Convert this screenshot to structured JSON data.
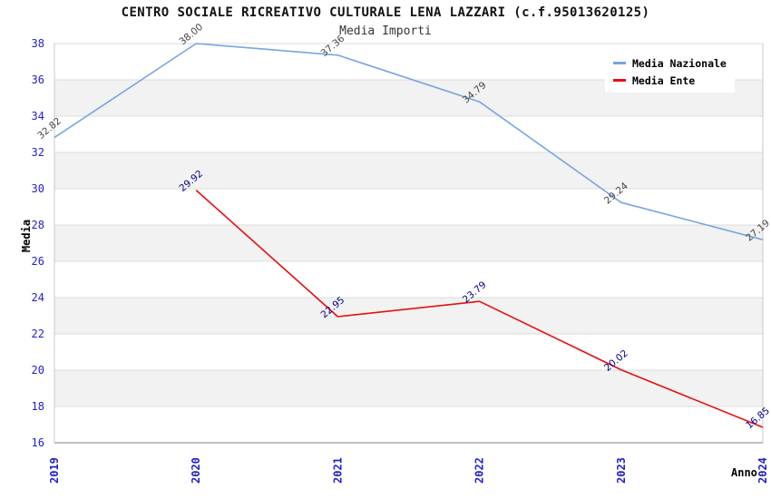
{
  "page": {
    "title": "CENTRO SOCIALE RICREATIVO CULTURALE LENA LAZZARI (c.f.95013620125)",
    "subtitle": "Media Importi"
  },
  "chart_data": {
    "type": "line",
    "title": "CENTRO SOCIALE RICREATIVO CULTURALE LENA LAZZARI (c.f.95013620125)",
    "subtitle": "Media Importi",
    "xlabel": "Anno",
    "ylabel": "Media",
    "categories": [
      "2019",
      "2020",
      "2021",
      "2022",
      "2023",
      "2024"
    ],
    "series": [
      {
        "name": "Media Nazionale",
        "color": "#76a5e3",
        "label_color": "#454545",
        "values": [
          32.82,
          38.0,
          37.36,
          34.79,
          29.24,
          27.19
        ]
      },
      {
        "name": "Media Ente",
        "color": "#e60f0f",
        "label_color": "#00008b",
        "values": [
          null,
          29.92,
          22.95,
          23.79,
          20.02,
          16.85
        ]
      }
    ],
    "ylim": [
      16,
      38
    ],
    "ytick_step": 2,
    "tick_label_color": "#1e1ecd",
    "band_color": "#f2f2f2",
    "grid_color": "#dcdcdc",
    "axis_line_color": "#999999",
    "border_color": "#c8c8c8",
    "grid": "horizontal-bands",
    "legend_position": "top-right",
    "value_labels_decimals": 2
  }
}
